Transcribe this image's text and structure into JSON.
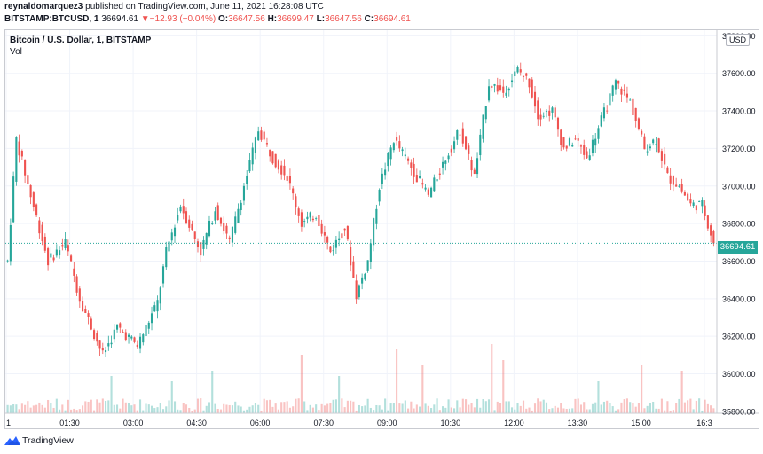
{
  "header": {
    "author": "reynaldomarquez3",
    "published_text": "published on TradingView.com, June 11, 2021 16:28:08 UTC",
    "symbol": "BITSTAMP:BTCUSD, 1",
    "last": "36694.61",
    "change_arrow": "▼",
    "change": "−12.93 (−0.04%)",
    "o_label": "O:",
    "o": "36647.56",
    "h_label": "H:",
    "h": "36699.47",
    "l_label": "L:",
    "l": "36647.56",
    "c_label": "C:",
    "c": "36694.61"
  },
  "legend": {
    "title": "Bitcoin / U.S. Dollar, 1, BITSTAMP",
    "volume": "Vol"
  },
  "currency": "USD",
  "price_tag": "36694.61",
  "footer": {
    "brand": "TradingView"
  },
  "colors": {
    "up": "#26a69a",
    "down": "#ef5350",
    "grid": "#f0f3fa",
    "axis_text": "#131722"
  },
  "chart_data": {
    "type": "candlestick",
    "title": "Bitcoin / U.S. Dollar, 1, BITSTAMP",
    "x_ticks": [
      "1",
      "01:30",
      "03:00",
      "04:30",
      "06:00",
      "07:30",
      "09:00",
      "10:30",
      "12:00",
      "13:30",
      "15:00",
      "16:3"
    ],
    "y_ticks": [
      35800,
      36000,
      36200,
      36400,
      36600,
      36800,
      37000,
      37200,
      37400,
      37600,
      37800
    ],
    "y_tick_labels": [
      "35800.00",
      "36000.00",
      "36200.00",
      "36400.00",
      "36600.00",
      "36800.00",
      "37000.00",
      "37200.00",
      "37400.00",
      "37600.00",
      "37800.00"
    ],
    "ylim": [
      35790,
      37830
    ],
    "last_price": 36694.61,
    "grid": true,
    "price_path": [
      [
        0,
        36600
      ],
      [
        3,
        37250
      ],
      [
        8,
        36950
      ],
      [
        14,
        36600
      ],
      [
        20,
        36700
      ],
      [
        25,
        36400
      ],
      [
        33,
        36100
      ],
      [
        38,
        36250
      ],
      [
        45,
        36150
      ],
      [
        52,
        36380
      ],
      [
        55,
        36650
      ],
      [
        60,
        36900
      ],
      [
        67,
        36650
      ],
      [
        72,
        36880
      ],
      [
        77,
        36700
      ],
      [
        82,
        37000
      ],
      [
        87,
        37300
      ],
      [
        92,
        37150
      ],
      [
        97,
        37050
      ],
      [
        102,
        36800
      ],
      [
        107,
        36850
      ],
      [
        112,
        36650
      ],
      [
        117,
        36780
      ],
      [
        121,
        36420
      ],
      [
        125,
        36600
      ],
      [
        129,
        37000
      ],
      [
        134,
        37250
      ],
      [
        140,
        37100
      ],
      [
        146,
        36950
      ],
      [
        152,
        37150
      ],
      [
        157,
        37300
      ],
      [
        162,
        37050
      ],
      [
        167,
        37550
      ],
      [
        172,
        37500
      ],
      [
        177,
        37620
      ],
      [
        181,
        37550
      ],
      [
        184,
        37380
      ],
      [
        189,
        37400
      ],
      [
        193,
        37200
      ],
      [
        197,
        37250
      ],
      [
        201,
        37150
      ],
      [
        206,
        37350
      ],
      [
        211,
        37550
      ],
      [
        216,
        37450
      ],
      [
        221,
        37200
      ],
      [
        225,
        37250
      ],
      [
        229,
        37050
      ],
      [
        233,
        37000
      ],
      [
        237,
        36900
      ],
      [
        241,
        36900
      ],
      [
        245,
        36700
      ]
    ],
    "volume_spikes": [
      {
        "bar": 36,
        "value": 0.35
      },
      {
        "bar": 57,
        "value": 0.3
      },
      {
        "bar": 71,
        "value": 0.4
      },
      {
        "bar": 102,
        "value": 0.55
      },
      {
        "bar": 115,
        "value": 0.35
      },
      {
        "bar": 135,
        "value": 0.6
      },
      {
        "bar": 144,
        "value": 0.45
      },
      {
        "bar": 168,
        "value": 0.65
      },
      {
        "bar": 172,
        "value": 0.5
      },
      {
        "bar": 205,
        "value": 0.3
      },
      {
        "bar": 220,
        "value": 0.45
      },
      {
        "bar": 234,
        "value": 0.4
      }
    ]
  }
}
